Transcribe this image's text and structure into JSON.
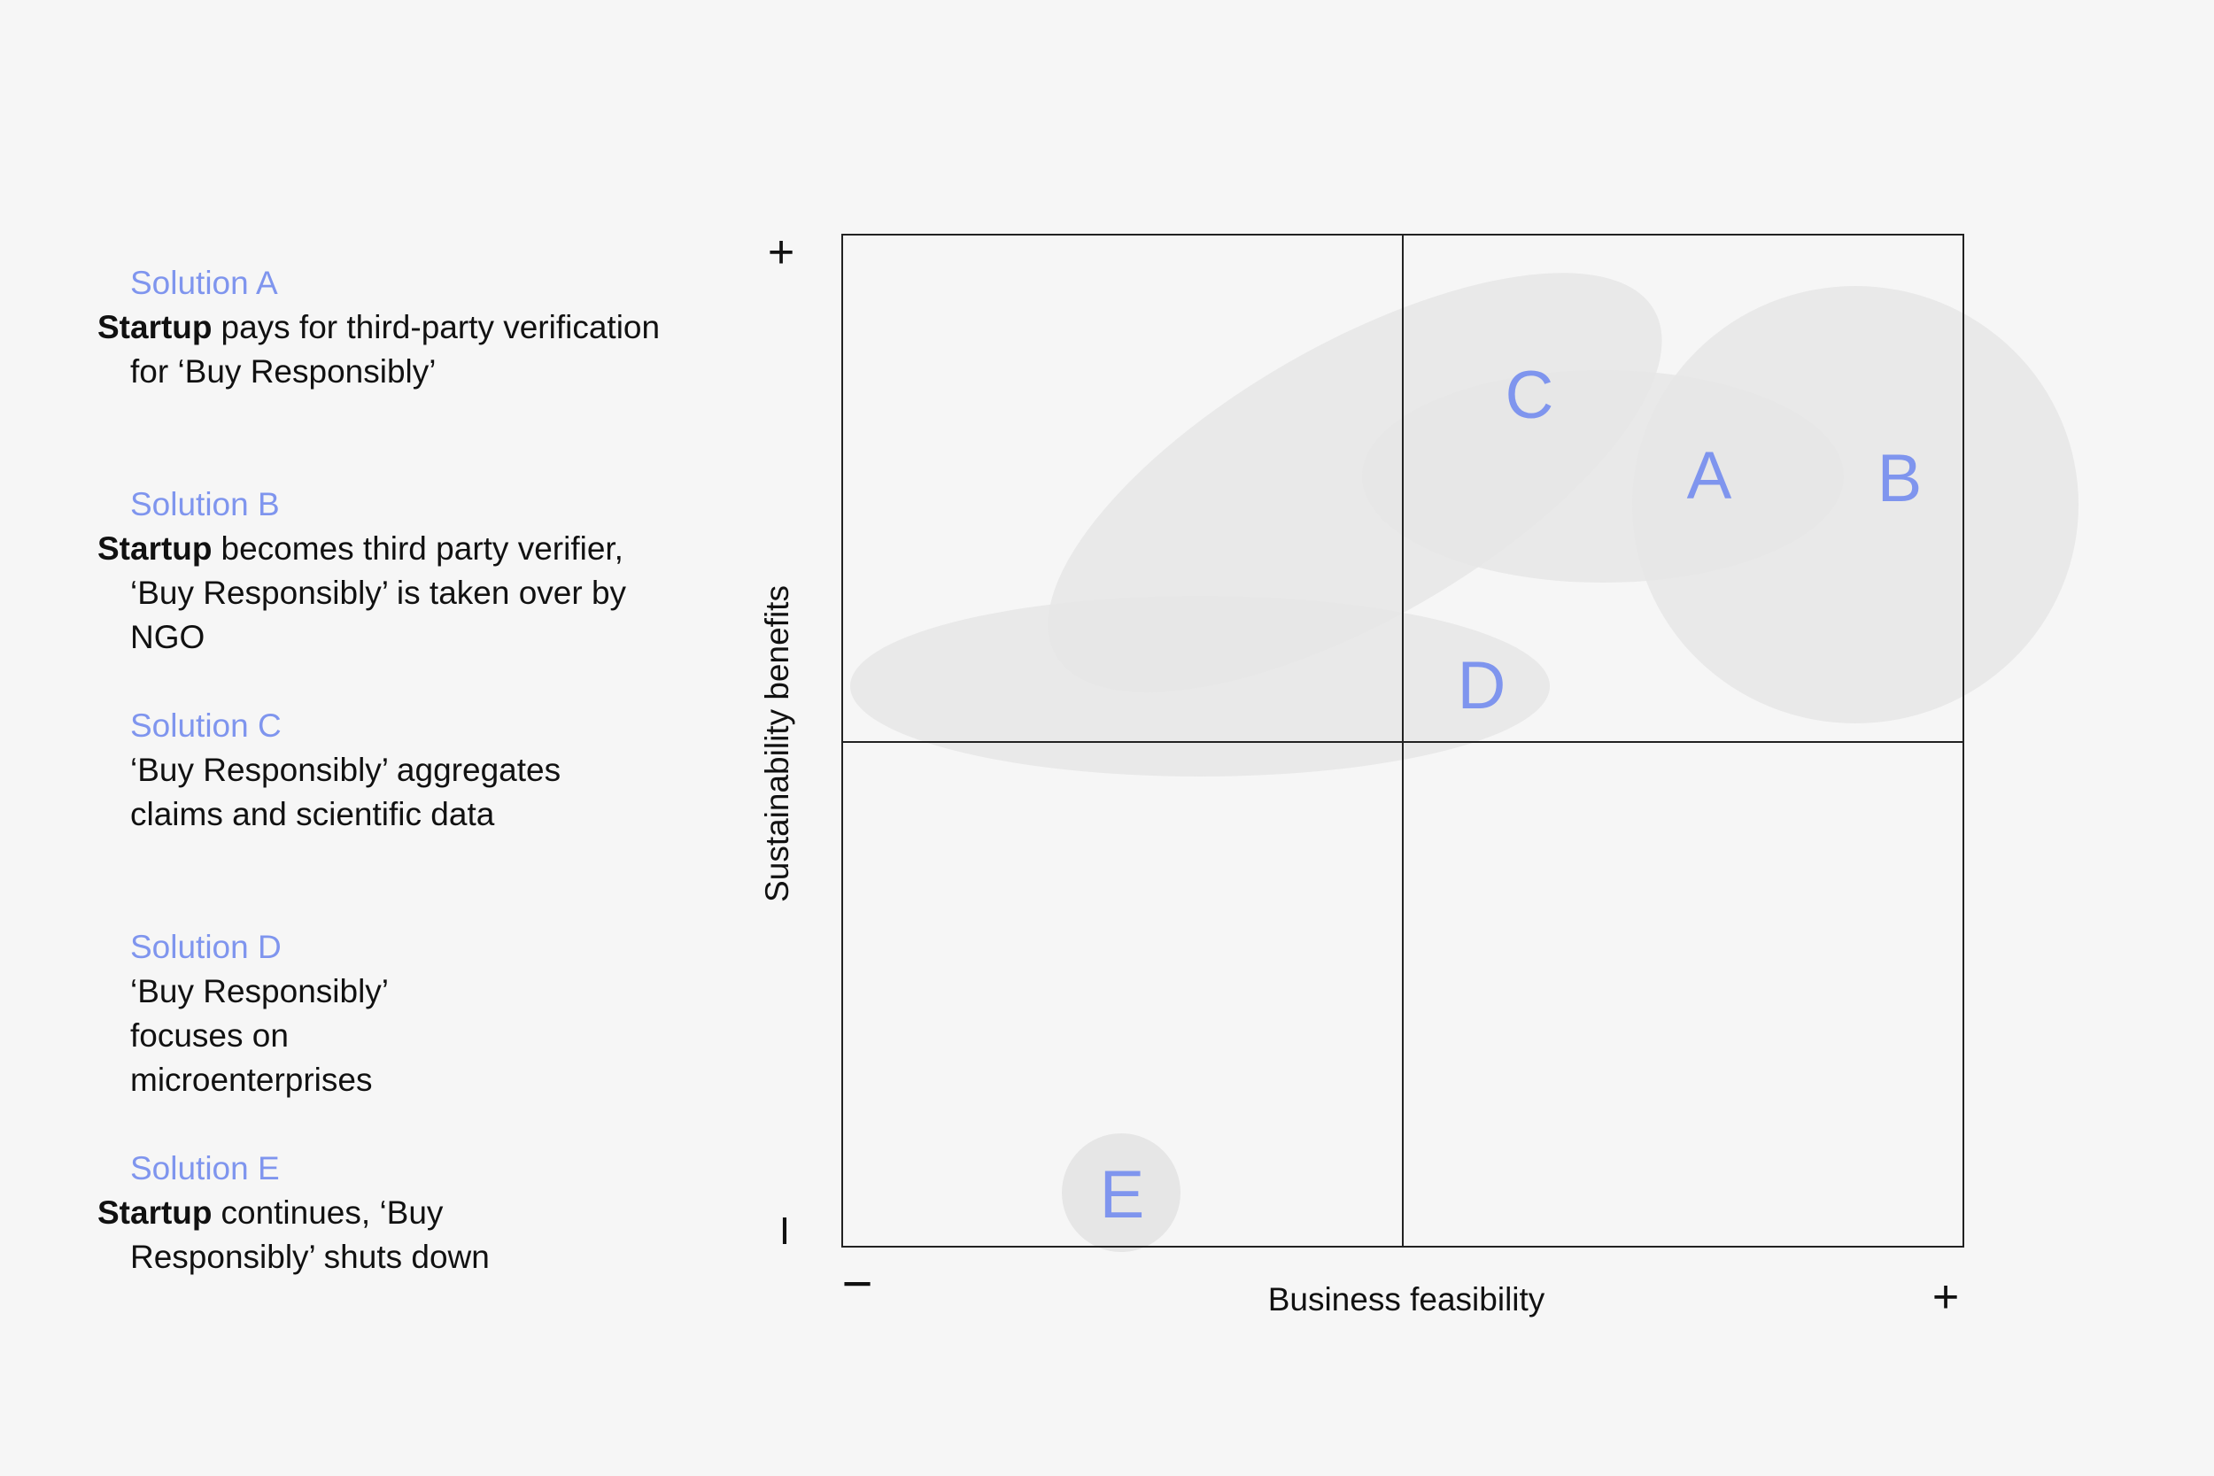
{
  "solutions": [
    {
      "title": "Solution A",
      "lead": "Startup",
      "text": "pays for third-party verification for ‘Buy Responsibly’"
    },
    {
      "title": "Solution B",
      "lead": "Startup",
      "text": "becomes third party verifier, ‘Buy Responsibly’ is taken over by NGO"
    },
    {
      "title": "Solution C",
      "lead": "",
      "text": "‘Buy Responsibly’ aggregates claims and scientific data"
    },
    {
      "title": "Solution D",
      "lead": "",
      "text": "‘Buy Responsibly’ focuses on microenterprises"
    },
    {
      "title": "Solution E",
      "lead": "Startup",
      "text": "continues, ‘Buy Responsibly’ shuts down"
    }
  ],
  "matrix": {
    "x_axis": {
      "label": "Business feasibility",
      "min_sign": "−",
      "max_sign": "+"
    },
    "y_axis": {
      "label": "Sustainability benefits",
      "max_sign": "+",
      "min_sign": "I"
    },
    "points": [
      {
        "label": "A"
      },
      {
        "label": "B"
      },
      {
        "label": "C"
      },
      {
        "label": "D"
      },
      {
        "label": "E"
      }
    ]
  },
  "colors": {
    "accent": "#7f95ee",
    "text": "#111111",
    "background": "#f6f6f6",
    "blob": "#e6e6e6",
    "grid": "#222222"
  }
}
